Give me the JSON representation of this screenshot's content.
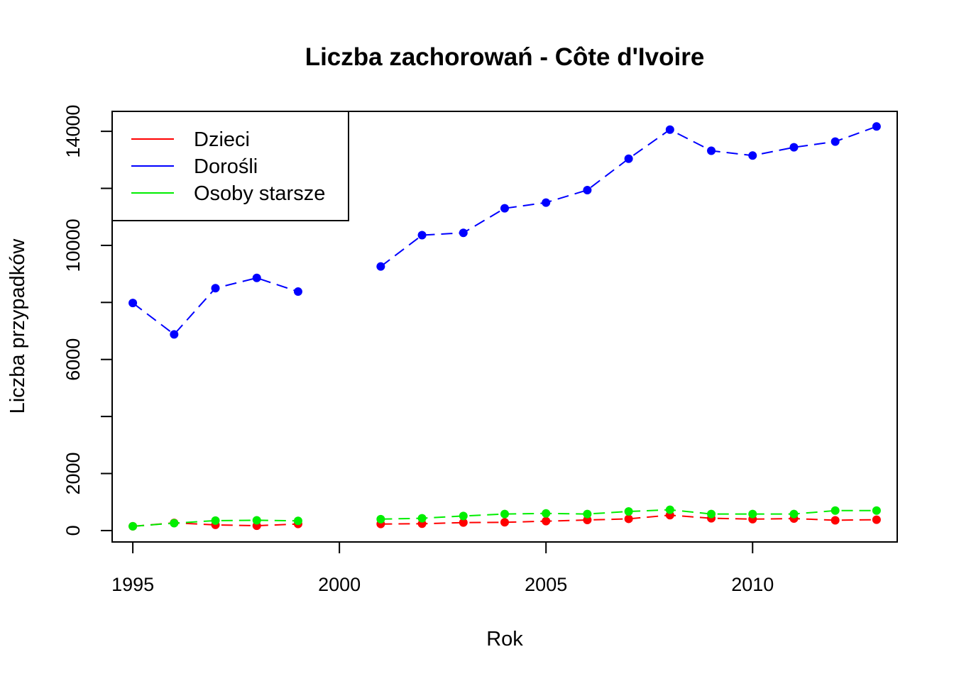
{
  "chart_data": {
    "type": "line",
    "title": "Liczba zachorowań -  Côte d'Ivoire",
    "xlabel": "Rok",
    "ylabel": "Liczba przypadków",
    "xlim": [
      1994.5,
      2013.5
    ],
    "ylim": [
      -400,
      14700
    ],
    "xticks": [
      1995,
      2000,
      2005,
      2010
    ],
    "yticks": [
      0,
      2000,
      4000,
      6000,
      8000,
      10000,
      12000,
      14000
    ],
    "ytick_labels": [
      "0",
      "2000",
      "",
      "6000",
      "",
      "10000",
      "",
      "14000"
    ],
    "grid": false,
    "legend_position": "top-left",
    "x": [
      1995,
      1996,
      1997,
      1998,
      1999,
      2000,
      2001,
      2002,
      2003,
      2004,
      2005,
      2006,
      2007,
      2008,
      2009,
      2010,
      2011,
      2012,
      2013
    ],
    "series": [
      {
        "name": "Dzieci",
        "color": "#ff0000",
        "values": [
          150,
          270,
          200,
          170,
          230,
          null,
          230,
          240,
          280,
          290,
          330,
          370,
          410,
          540,
          430,
          400,
          420,
          360,
          380
        ]
      },
      {
        "name": "Dorośli",
        "color": "#0000ff",
        "values": [
          7980,
          6880,
          8500,
          8860,
          8380,
          null,
          9260,
          10360,
          10440,
          11300,
          11500,
          11940,
          13040,
          14060,
          13320,
          13150,
          13440,
          13640,
          14170
        ]
      },
      {
        "name": "Osoby starsze",
        "color": "#00ee00",
        "values": [
          150,
          260,
          350,
          360,
          340,
          null,
          400,
          430,
          510,
          580,
          600,
          580,
          670,
          730,
          580,
          580,
          580,
          700,
          700
        ]
      }
    ]
  }
}
